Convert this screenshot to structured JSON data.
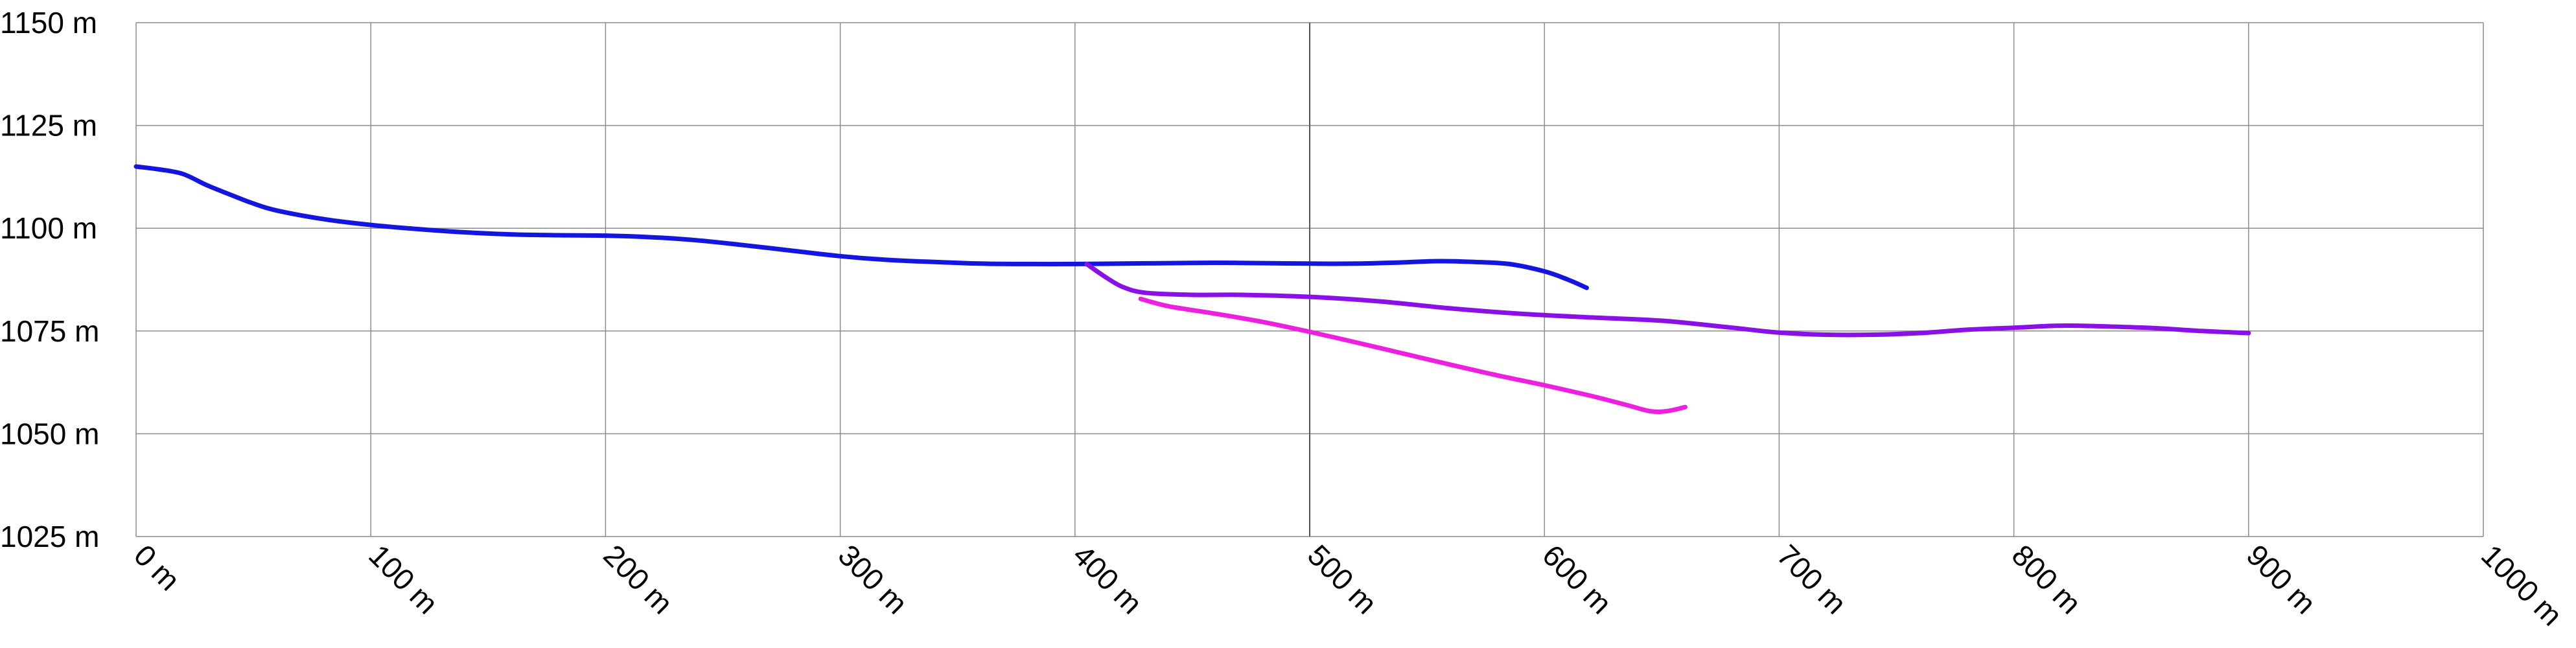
{
  "chart_data": {
    "type": "line",
    "title": "",
    "xlabel": "",
    "ylabel": "",
    "xlim": [
      0,
      1000
    ],
    "ylim": [
      1025,
      1150
    ],
    "x_unit": "m",
    "y_unit": "m",
    "grid": true,
    "legend": "none",
    "x_ticks": [
      "0 m",
      "100 m",
      "200 m",
      "300 m",
      "400 m",
      "500 m",
      "600 m",
      "700 m",
      "800 m",
      "900 m",
      "1000 m"
    ],
    "y_ticks": [
      "1150 m",
      "1125 m",
      "1100 m",
      "1075 m",
      "1050 m",
      "1025 m"
    ],
    "series": [
      {
        "color": "#1515e0",
        "points": [
          [
            0,
            1115
          ],
          [
            10,
            1114.3
          ],
          [
            20,
            1113.2
          ],
          [
            30,
            1110.5
          ],
          [
            40,
            1108.2
          ],
          [
            50,
            1106
          ],
          [
            60,
            1104.3
          ],
          [
            80,
            1102.2
          ],
          [
            100,
            1100.8
          ],
          [
            120,
            1099.8
          ],
          [
            140,
            1099
          ],
          [
            160,
            1098.5
          ],
          [
            180,
            1098.3
          ],
          [
            200,
            1098.2
          ],
          [
            220,
            1097.8
          ],
          [
            240,
            1097
          ],
          [
            260,
            1095.8
          ],
          [
            280,
            1094.5
          ],
          [
            300,
            1093.2
          ],
          [
            320,
            1092.3
          ],
          [
            340,
            1091.8
          ],
          [
            360,
            1091.4
          ],
          [
            380,
            1091.3
          ],
          [
            400,
            1091.3
          ],
          [
            420,
            1091.4
          ],
          [
            440,
            1091.5
          ],
          [
            460,
            1091.6
          ],
          [
            480,
            1091.5
          ],
          [
            500,
            1091.4
          ],
          [
            520,
            1091.4
          ],
          [
            540,
            1091.7
          ],
          [
            555,
            1092
          ],
          [
            570,
            1091.8
          ],
          [
            585,
            1091.3
          ],
          [
            600,
            1089.5
          ],
          [
            610,
            1087.5
          ],
          [
            618,
            1085.5
          ]
        ]
      },
      {
        "color": "#8a10e8",
        "points": [
          [
            405,
            1091.3
          ],
          [
            412,
            1088.5
          ],
          [
            420,
            1085.8
          ],
          [
            430,
            1084.3
          ],
          [
            450,
            1083.8
          ],
          [
            470,
            1083.8
          ],
          [
            500,
            1083.3
          ],
          [
            530,
            1082.2
          ],
          [
            560,
            1080.5
          ],
          [
            590,
            1079.2
          ],
          [
            620,
            1078.3
          ],
          [
            650,
            1077.5
          ],
          [
            680,
            1075.8
          ],
          [
            700,
            1074.6
          ],
          [
            720,
            1074.1
          ],
          [
            740,
            1074.1
          ],
          [
            760,
            1074.5
          ],
          [
            780,
            1075.3
          ],
          [
            800,
            1075.8
          ],
          [
            820,
            1076.3
          ],
          [
            840,
            1076.1
          ],
          [
            860,
            1075.7
          ],
          [
            880,
            1075
          ],
          [
            900,
            1074.5
          ]
        ]
      },
      {
        "color": "#ee20e0",
        "points": [
          [
            428,
            1082.8
          ],
          [
            440,
            1081
          ],
          [
            460,
            1079.2
          ],
          [
            480,
            1077.2
          ],
          [
            500,
            1074.8
          ],
          [
            520,
            1072.2
          ],
          [
            540,
            1069.5
          ],
          [
            560,
            1066.8
          ],
          [
            580,
            1064.2
          ],
          [
            600,
            1061.8
          ],
          [
            620,
            1059.2
          ],
          [
            635,
            1057
          ],
          [
            645,
            1055.5
          ],
          [
            652,
            1055.5
          ],
          [
            660,
            1056.5
          ]
        ]
      }
    ]
  }
}
